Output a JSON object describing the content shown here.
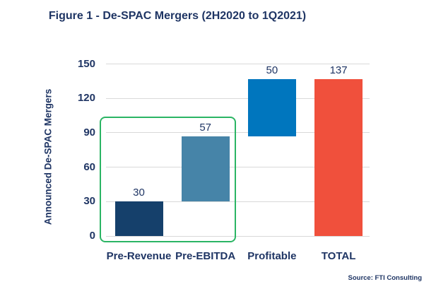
{
  "figure": {
    "source": "Source: FTI Consulting"
  },
  "colors": {
    "text_navy": "#1F3564",
    "gridline": "#D9D9D9",
    "highlight_green": "#2BB564"
  },
  "chart_data": {
    "type": "bar",
    "subtype": "waterfall",
    "title": "Figure 1 - De-SPAC Mergers (2H2020 to 1Q2021)",
    "xlabel": "",
    "ylabel": "Announced De-SPAC Mergers",
    "categories": [
      "Pre-Revenue",
      "Pre-EBITDA",
      "Profitable",
      "TOTAL"
    ],
    "values": [
      30,
      57,
      50,
      137
    ],
    "bar_base": [
      0,
      30,
      87,
      0
    ],
    "data_labels": [
      "30",
      "57",
      "50",
      "137"
    ],
    "bar_colors": [
      "#15406B",
      "#4684A8",
      "#0076BE",
      "#F0503C"
    ],
    "ylim": [
      0,
      150
    ],
    "yticks": [
      0,
      30,
      60,
      90,
      120,
      150
    ],
    "grid": true,
    "legend": "none",
    "annotation": {
      "shape": "rounded-rect-outline",
      "covers_categories": [
        "Pre-Revenue",
        "Pre-EBITDA"
      ],
      "color": "#2BB564"
    }
  }
}
